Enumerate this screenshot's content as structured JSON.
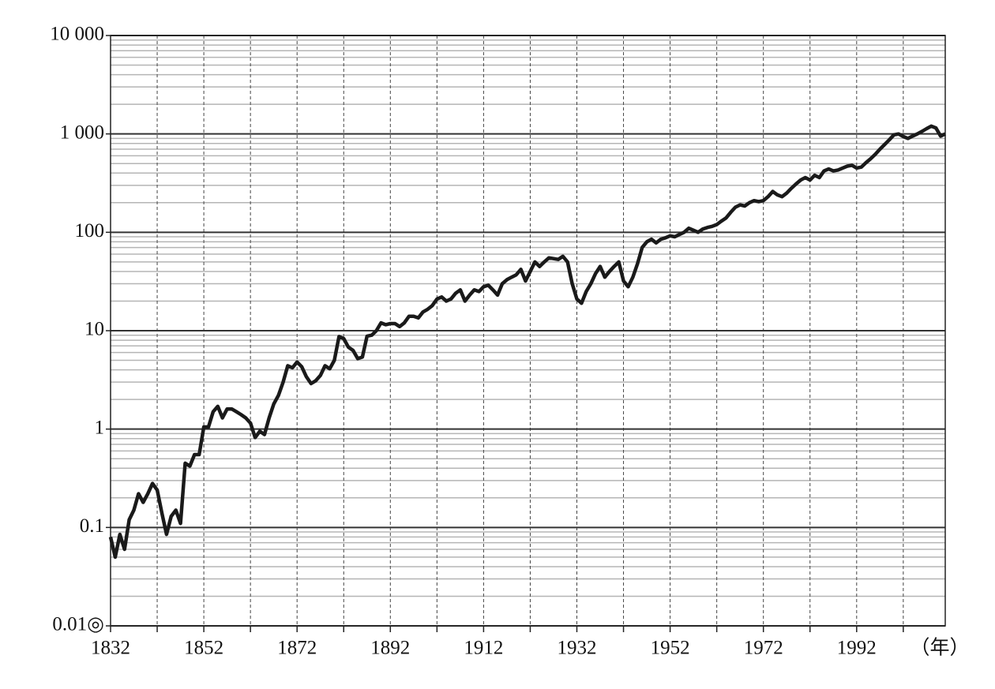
{
  "chart_data": {
    "type": "line",
    "log_scale_y": true,
    "grid": true,
    "x_label": "（年）",
    "xlim": [
      1832,
      2011
    ],
    "xticks": [
      1832,
      1852,
      1872,
      1892,
      1912,
      1932,
      1952,
      1972,
      1992
    ],
    "xminor": [
      1842,
      1862,
      1882,
      1902,
      1922,
      1942,
      1962,
      1982,
      2002
    ],
    "ylim": [
      0.01,
      10000
    ],
    "yticks": [
      {
        "value": 0.01,
        "label": "0.01◎"
      },
      0.1,
      1,
      10,
      100,
      {
        "value": 1000,
        "label": "1 000"
      },
      {
        "value": 10000,
        "label": "10 000"
      }
    ],
    "color": "#1a1a1a",
    "x": [
      1832,
      1833,
      1834,
      1835,
      1836,
      1837,
      1838,
      1839,
      1840,
      1841,
      1842,
      1843,
      1844,
      1845,
      1846,
      1847,
      1848,
      1849,
      1850,
      1851,
      1852,
      1853,
      1854,
      1855,
      1856,
      1857,
      1858,
      1859,
      1860,
      1861,
      1862,
      1863,
      1864,
      1865,
      1866,
      1867,
      1868,
      1869,
      1870,
      1871,
      1872,
      1873,
      1874,
      1875,
      1876,
      1877,
      1878,
      1879,
      1880,
      1881,
      1882,
      1883,
      1884,
      1885,
      1886,
      1887,
      1888,
      1889,
      1890,
      1891,
      1892,
      1893,
      1894,
      1895,
      1896,
      1897,
      1898,
      1899,
      1900,
      1901,
      1902,
      1903,
      1904,
      1905,
      1906,
      1907,
      1908,
      1909,
      1910,
      1911,
      1912,
      1913,
      1914,
      1915,
      1916,
      1917,
      1918,
      1919,
      1920,
      1921,
      1922,
      1923,
      1924,
      1925,
      1926,
      1927,
      1928,
      1929,
      1930,
      1931,
      1932,
      1933,
      1934,
      1935,
      1936,
      1937,
      1938,
      1939,
      1940,
      1941,
      1942,
      1943,
      1944,
      1945,
      1946,
      1947,
      1948,
      1949,
      1950,
      1951,
      1952,
      1953,
      1954,
      1955,
      1956,
      1957,
      1958,
      1959,
      1960,
      1961,
      1962,
      1963,
      1964,
      1965,
      1966,
      1967,
      1968,
      1969,
      1970,
      1971,
      1972,
      1973,
      1974,
      1975,
      1976,
      1977,
      1978,
      1979,
      1980,
      1981,
      1982,
      1983,
      1984,
      1985,
      1986,
      1987,
      1988,
      1989,
      1990,
      1991,
      1992,
      1993,
      1994,
      1995,
      1996,
      1997,
      1998,
      1999,
      2000,
      2001,
      2002,
      2003,
      2004,
      2005,
      2006,
      2007,
      2008,
      2009,
      2010,
      2011
    ],
    "values": [
      0.08,
      0.05,
      0.085,
      0.06,
      0.12,
      0.15,
      0.22,
      0.18,
      0.22,
      0.28,
      0.24,
      0.14,
      0.085,
      0.13,
      0.15,
      0.11,
      0.45,
      0.42,
      0.55,
      0.55,
      1.05,
      1.05,
      1.5,
      1.7,
      1.3,
      1.6,
      1.6,
      1.5,
      1.4,
      1.3,
      1.15,
      0.82,
      0.95,
      0.88,
      1.3,
      1.8,
      2.2,
      3.0,
      4.4,
      4.2,
      4.8,
      4.3,
      3.4,
      2.9,
      3.1,
      3.5,
      4.4,
      4.1,
      5.0,
      8.7,
      8.3,
      6.8,
      6.3,
      5.2,
      5.4,
      8.8,
      9.0,
      10,
      12,
      11.5,
      11.8,
      11.8,
      11,
      12,
      14,
      14,
      13.5,
      15.5,
      16.5,
      18,
      21,
      22,
      20,
      21,
      24,
      26,
      20,
      23,
      26,
      25,
      28,
      29,
      26,
      23,
      30,
      33,
      35,
      37,
      42,
      32,
      40,
      50,
      45,
      50,
      55,
      54,
      53,
      57,
      50,
      30,
      21,
      19,
      25,
      30,
      38,
      45,
      35,
      40,
      45,
      50,
      32,
      28,
      35,
      48,
      70,
      80,
      85,
      78,
      85,
      88,
      92,
      90,
      95,
      100,
      110,
      105,
      100,
      108,
      112,
      115,
      120,
      130,
      140,
      160,
      180,
      190,
      185,
      200,
      210,
      205,
      210,
      230,
      260,
      240,
      230,
      250,
      280,
      310,
      340,
      360,
      340,
      380,
      360,
      420,
      440,
      420,
      430,
      450,
      470,
      480,
      450,
      460,
      510,
      560,
      620,
      700,
      780,
      870,
      980,
      1000,
      940,
      900,
      950,
      1000,
      1060,
      1130,
      1200,
      1150,
      950,
      1000
    ]
  }
}
